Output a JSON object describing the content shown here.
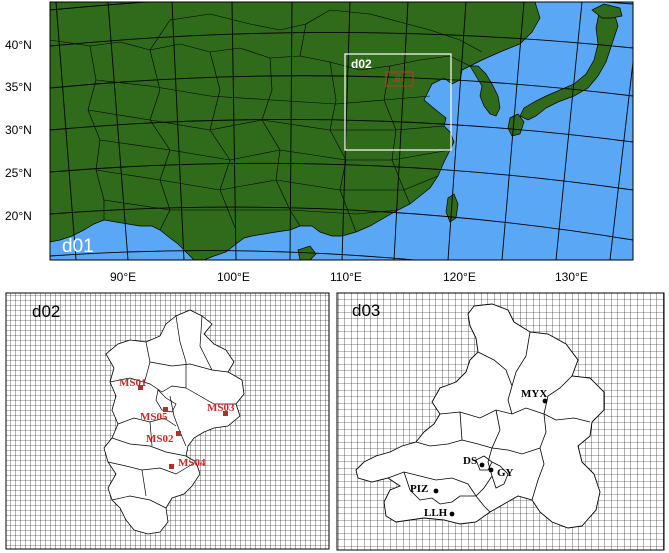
{
  "top_panel": {
    "label": "d01",
    "inner_domain_label": "d02",
    "inset_label": "d03",
    "lat_labels": [
      "40°N",
      "35°N",
      "30°N",
      "25°N",
      "20°N"
    ],
    "lon_labels": [
      "90°E",
      "100°E",
      "110°E",
      "120°E",
      "130°E"
    ],
    "colors": {
      "land": "#2f6b1a",
      "ocean": "#5aa7f5",
      "border": "#000000",
      "box": "#ffffff",
      "inset_box": "#c83232"
    }
  },
  "d02_panel": {
    "label": "d02",
    "sites": [
      {
        "name": "MS01"
      },
      {
        "name": "MS05"
      },
      {
        "name": "MS03"
      },
      {
        "name": "MS02"
      },
      {
        "name": "MS04"
      }
    ],
    "colors": {
      "site": "#d0282a",
      "grid": "#000000",
      "region": "#ffffff"
    }
  },
  "d03_panel": {
    "label": "d03",
    "stations": [
      {
        "name": "MYX"
      },
      {
        "name": "DS"
      },
      {
        "name": "GY"
      },
      {
        "name": "PIZ"
      },
      {
        "name": "LLH"
      }
    ],
    "colors": {
      "station": "#000000",
      "grid": "#000000",
      "region": "#ffffff"
    }
  }
}
